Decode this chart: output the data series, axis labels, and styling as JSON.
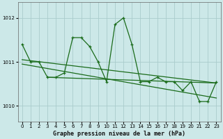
{
  "title": "Graphe pression niveau de la mer (hPa)",
  "bg_color": "#cce8e8",
  "grid_color": "#aacccc",
  "line_color": "#1a6b1a",
  "xlim": [
    -0.5,
    23.5
  ],
  "ylim": [
    1009.65,
    1012.35
  ],
  "yticks": [
    1010,
    1011,
    1012
  ],
  "xticks": [
    0,
    1,
    2,
    3,
    4,
    5,
    6,
    7,
    8,
    9,
    10,
    11,
    12,
    13,
    14,
    15,
    16,
    17,
    18,
    19,
    20,
    21,
    22,
    23
  ],
  "main_data": [
    1011.4,
    1011.0,
    1011.0,
    1010.65,
    1010.65,
    1010.75,
    1011.55,
    1011.55,
    1011.35,
    1011.0,
    1010.55,
    1011.85,
    1012.0,
    1011.4,
    1010.55,
    1010.55,
    1010.65,
    1010.55,
    1010.55,
    1010.35,
    1010.55,
    1010.1,
    1010.1,
    1010.55
  ],
  "trend1_x": [
    0,
    23
  ],
  "trend1_y": [
    1011.05,
    1010.52
  ],
  "trend2_x": [
    0,
    23
  ],
  "trend2_y": [
    1010.95,
    1010.18
  ],
  "trend3_x": [
    3,
    23
  ],
  "trend3_y": [
    1010.65,
    1010.52
  ]
}
